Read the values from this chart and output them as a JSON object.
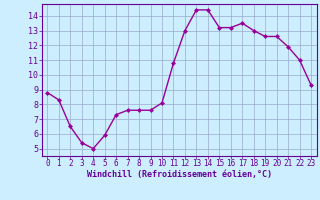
{
  "x": [
    0,
    1,
    2,
    3,
    4,
    5,
    6,
    7,
    8,
    9,
    10,
    11,
    12,
    13,
    14,
    15,
    16,
    17,
    18,
    19,
    20,
    21,
    22,
    23
  ],
  "y": [
    8.8,
    8.3,
    6.5,
    5.4,
    5.0,
    5.9,
    7.3,
    7.6,
    7.6,
    7.6,
    8.1,
    10.8,
    13.0,
    14.4,
    14.4,
    13.2,
    13.2,
    13.5,
    13.0,
    12.6,
    12.6,
    11.9,
    11.0,
    9.3
  ],
  "line_color": "#990099",
  "marker": "D",
  "marker_size": 2,
  "bg_color": "#cceeff",
  "grid_color": "#99aacc",
  "xlabel": "Windchill (Refroidissement éolien,°C)",
  "xlabel_color": "#660099",
  "ylim": [
    4.5,
    14.8
  ],
  "yticks": [
    5,
    6,
    7,
    8,
    9,
    10,
    11,
    12,
    13,
    14
  ],
  "xticks": [
    0,
    1,
    2,
    3,
    4,
    5,
    6,
    7,
    8,
    9,
    10,
    11,
    12,
    13,
    14,
    15,
    16,
    17,
    18,
    19,
    20,
    21,
    22,
    23
  ],
  "tick_color": "#660099",
  "spine_color": "#660099",
  "line_width": 1.0
}
